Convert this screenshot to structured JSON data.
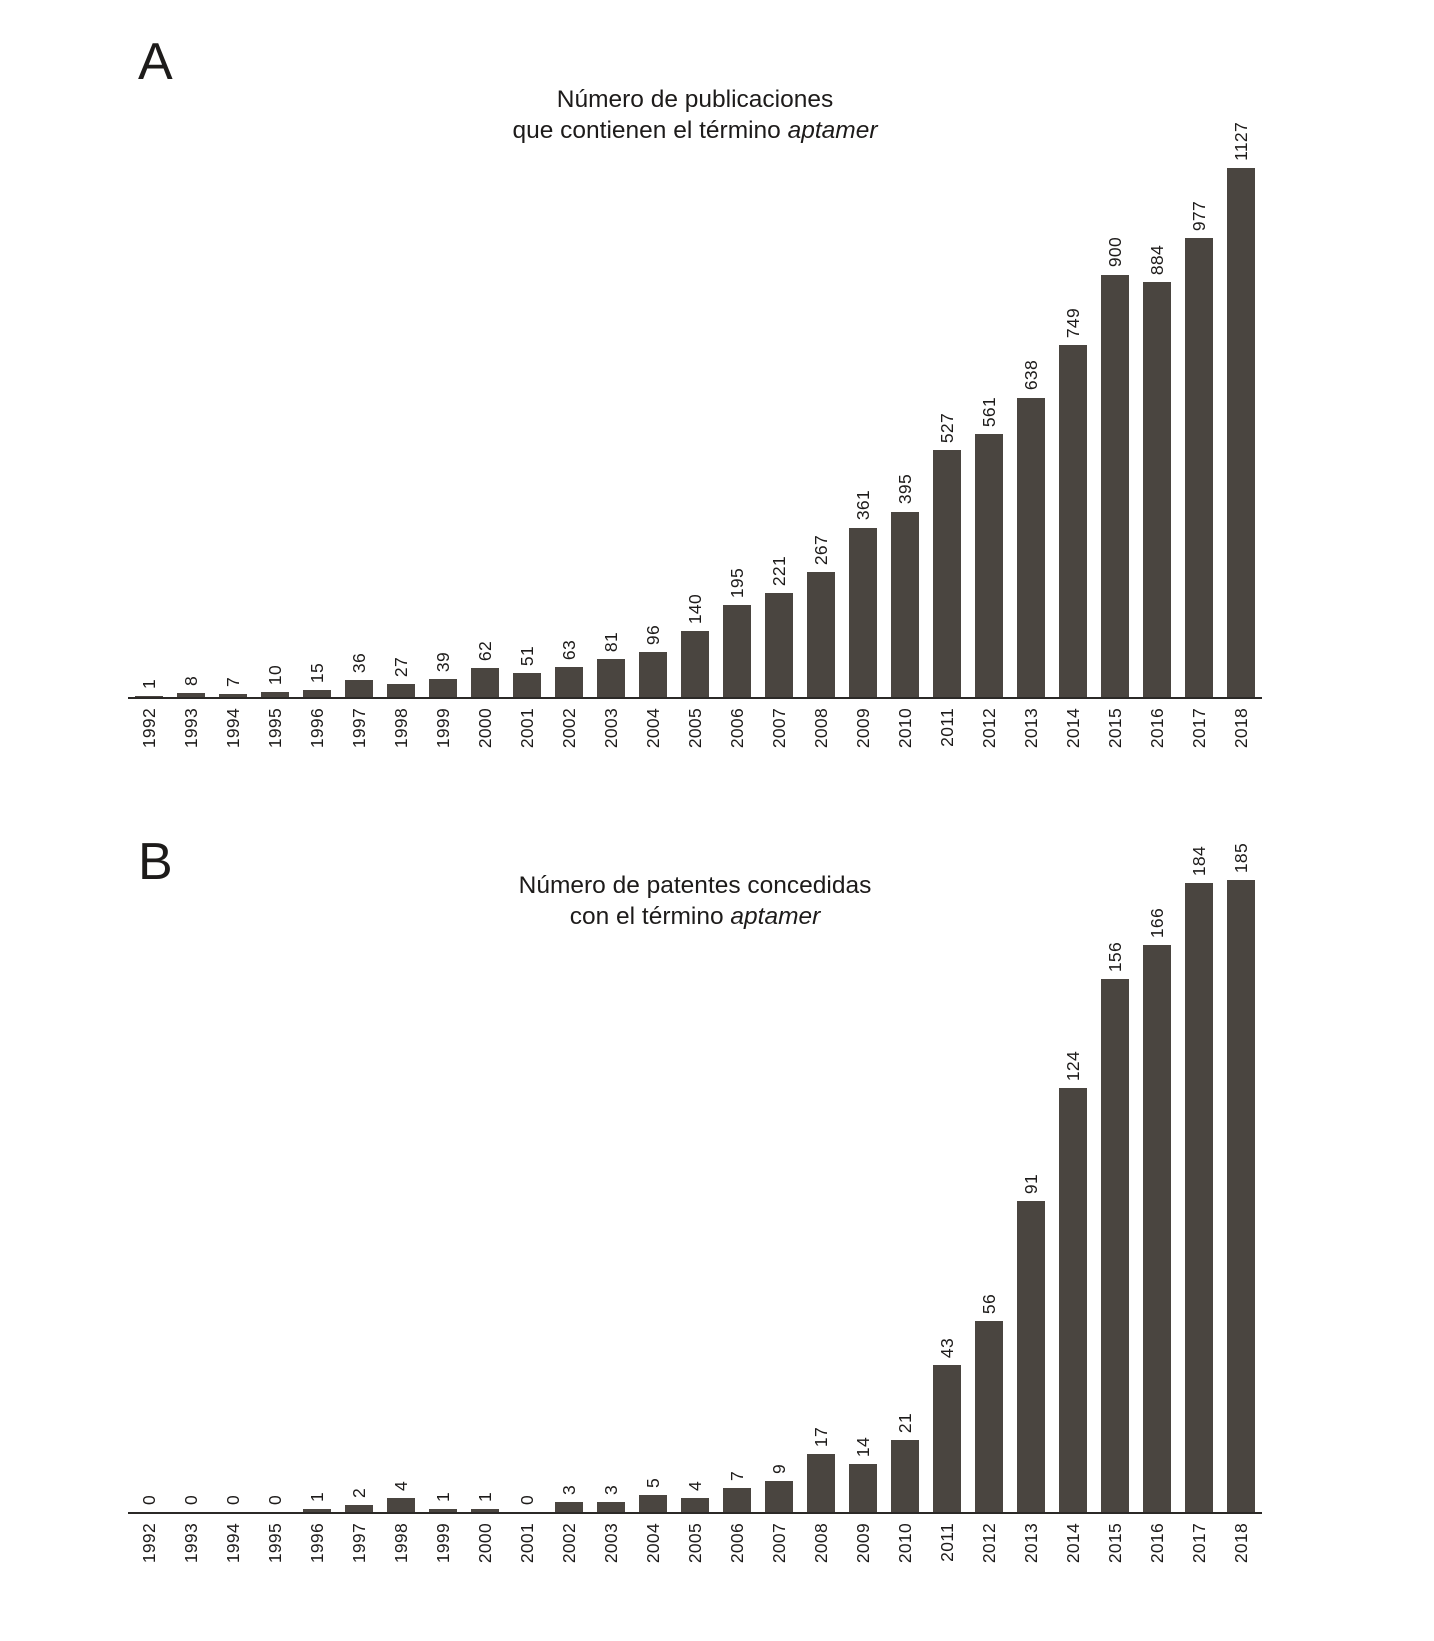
{
  "colors": {
    "bar": "#4a4540",
    "axis": "#2b2927",
    "text": "#1d1b1a"
  },
  "panels": [
    {
      "label": "A",
      "title_line1": "Número de publicaciones",
      "title_line2": "que contienen el término",
      "title_term": "aptamer"
    },
    {
      "label": "B",
      "title_line1": "Número de patentes concedidas",
      "title_line2": "con el término",
      "title_term": "aptamer"
    }
  ],
  "chart_data": [
    {
      "type": "bar",
      "title": "Número de publicaciones que contienen el término aptamer",
      "xlabel": "",
      "ylabel": "",
      "categories": [
        "1992",
        "1993",
        "1994",
        "1995",
        "1996",
        "1997",
        "1998",
        "1999",
        "2000",
        "2001",
        "2002",
        "2003",
        "2004",
        "2005",
        "2006",
        "2007",
        "2008",
        "2009",
        "2010",
        "2011",
        "2012",
        "2013",
        "2014",
        "2015",
        "2016",
        "2017",
        "2018"
      ],
      "values": [
        1,
        8,
        7,
        10,
        15,
        36,
        27,
        39,
        62,
        51,
        63,
        81,
        96,
        140,
        195,
        221,
        267,
        361,
        395,
        527,
        561,
        638,
        749,
        900,
        884,
        977,
        1127
      ],
      "ylim": [
        0,
        1127
      ],
      "y_axis_visible": false,
      "grid": false,
      "value_label_rotation": 90,
      "tick_label_rotation": 90
    },
    {
      "type": "bar",
      "title": "Número de patentes concedidas con el término aptamer",
      "xlabel": "",
      "ylabel": "",
      "categories": [
        "1992",
        "1993",
        "1994",
        "1995",
        "1996",
        "1997",
        "1998",
        "1999",
        "2000",
        "2001",
        "2002",
        "2003",
        "2004",
        "2005",
        "2006",
        "2007",
        "2008",
        "2009",
        "2010",
        "2011",
        "2012",
        "2013",
        "2014",
        "2015",
        "2016",
        "2017",
        "2018"
      ],
      "values": [
        0,
        0,
        0,
        0,
        1,
        2,
        4,
        1,
        1,
        0,
        3,
        3,
        5,
        4,
        7,
        9,
        17,
        14,
        21,
        43,
        56,
        91,
        124,
        156,
        166,
        184,
        185
      ],
      "ylim": [
        0,
        185
      ],
      "y_axis_visible": false,
      "grid": false,
      "value_label_rotation": 90,
      "tick_label_rotation": 90
    }
  ]
}
